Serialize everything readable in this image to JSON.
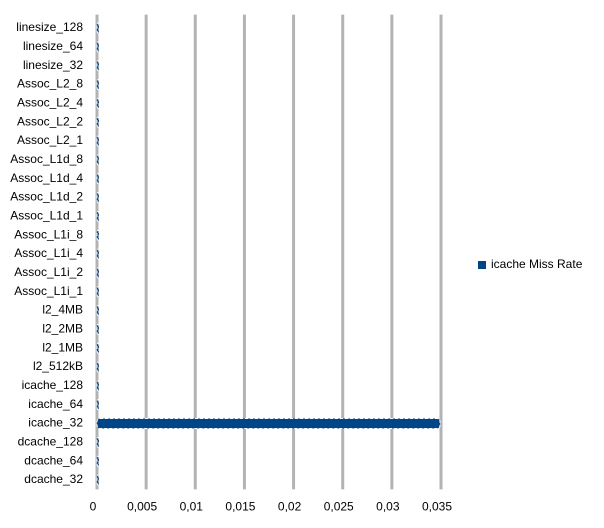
{
  "chart_data": {
    "type": "hbar",
    "categories": [
      "linesize_128",
      "linesize_64",
      "linesize_32",
      "Assoc_L2_8",
      "Assoc_L2_4",
      "Assoc_L2_2",
      "Assoc_L2_1",
      "Assoc_L1d_8",
      "Assoc_L1d_4",
      "Assoc_L1d_2",
      "Assoc_L1d_1",
      "Assoc_L1i_8",
      "Assoc_L1i_4",
      "Assoc_L1i_2",
      "Assoc_L1i_1",
      "l2_4MB",
      "l2_2MB",
      "l2_1MB",
      "l2_512kB",
      "icache_128",
      "icache_64",
      "icache_32",
      "dcache_128",
      "dcache_64",
      "dcache_32"
    ],
    "series": [
      {
        "name": "icache Miss Rate",
        "color": "#004586",
        "values": [
          0.0002,
          0.0002,
          0.0002,
          0.0002,
          0.0002,
          0.0002,
          0.0002,
          0.0002,
          0.0002,
          0.0002,
          0.0002,
          0.0002,
          0.0002,
          0.0002,
          0.0002,
          0.0002,
          0.0002,
          0.0002,
          0.0002,
          0.0002,
          0.0002,
          0.0349,
          0.0002,
          0.0002,
          0.0002
        ]
      }
    ],
    "xlim": [
      0,
      0.035
    ],
    "xticks": [
      0,
      {
        "value": 0.005,
        "label": "0,005"
      },
      {
        "value": 0.01,
        "label": "0,01"
      },
      {
        "value": 0.015,
        "label": "0,015"
      },
      {
        "value": 0.02,
        "label": "0,02"
      },
      {
        "value": 0.025,
        "label": "0,025"
      },
      {
        "value": 0.03,
        "label": "0,03"
      },
      {
        "value": 0.035,
        "label": "0,035"
      }
    ],
    "grid": true,
    "legend": "right"
  }
}
